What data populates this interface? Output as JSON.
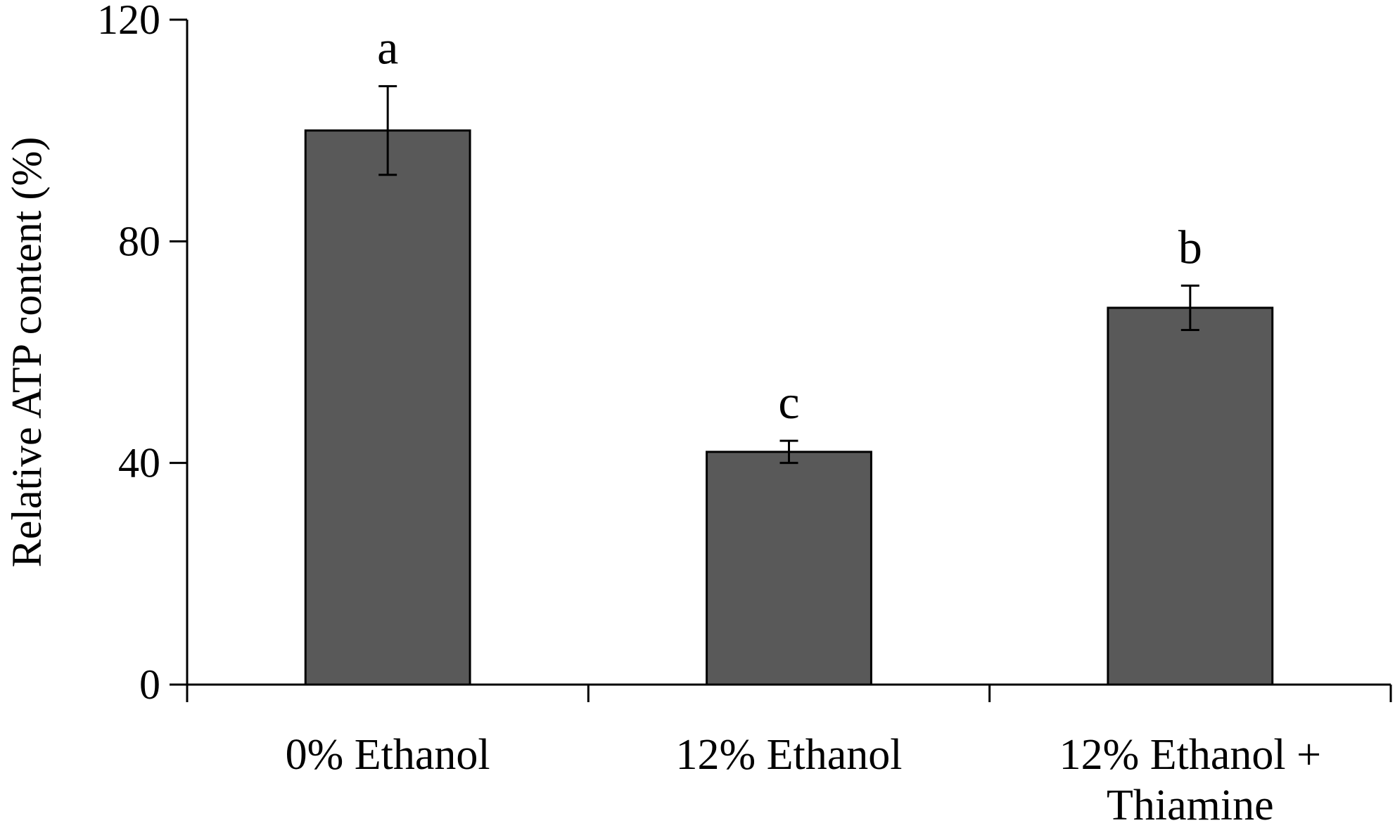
{
  "chart_data": {
    "type": "bar",
    "y_label": "Relative  ATP content (%)",
    "categories": [
      [
        "0% Ethanol"
      ],
      [
        "12% Ethanol"
      ],
      [
        "12% Ethanol +",
        "Thiamine"
      ]
    ],
    "values": [
      100,
      42,
      68
    ],
    "errors": [
      8,
      2,
      4
    ],
    "annotations": [
      "a",
      "c",
      "b"
    ],
    "color": "#595959",
    "ylim": [
      0,
      120
    ],
    "yticks": [
      0,
      40,
      80,
      120
    ],
    "grid": false
  }
}
